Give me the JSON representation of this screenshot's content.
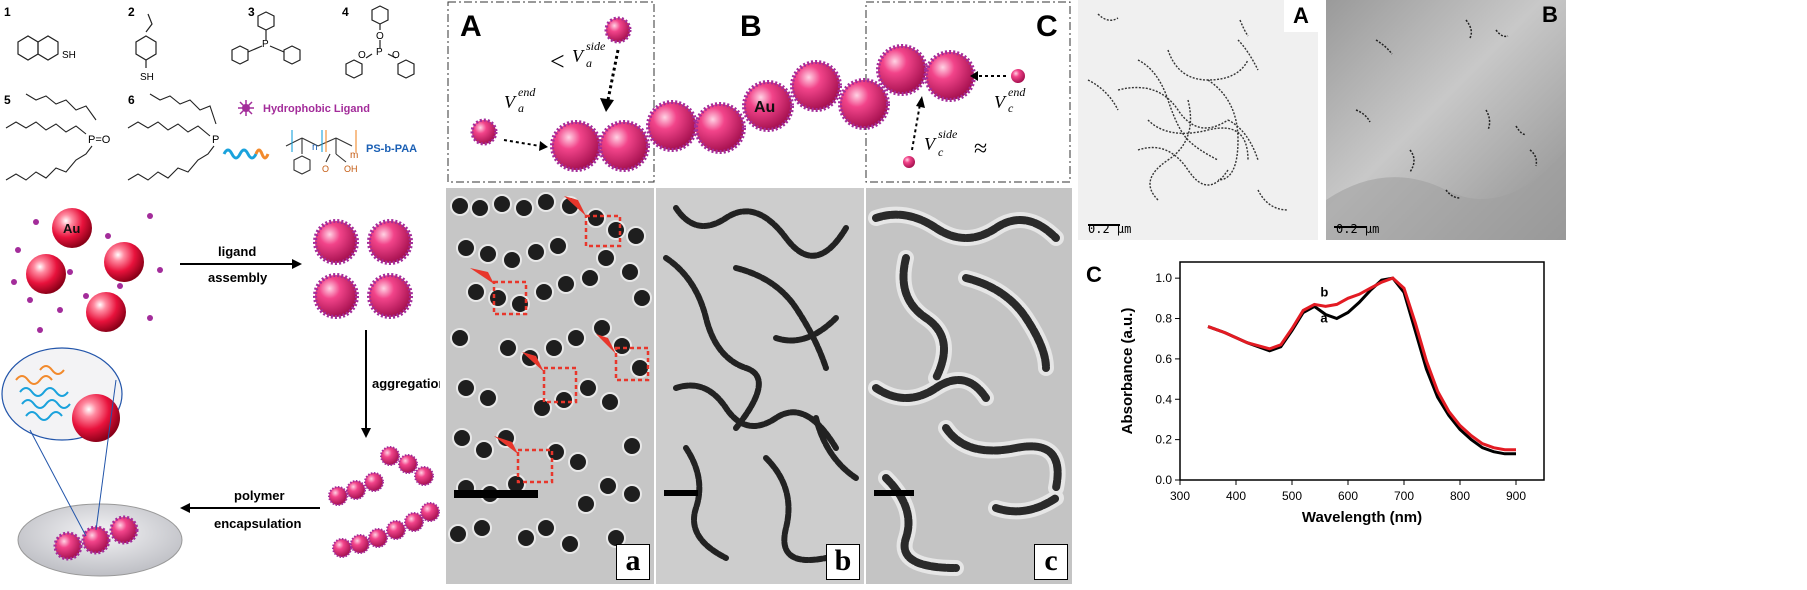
{
  "left_panel": {
    "ligand_numbers": [
      "1",
      "2",
      "3",
      "4",
      "5",
      "6"
    ],
    "groups": {
      "thiol": "SH",
      "phosphine_oxide": "P=O",
      "phosphine": "P",
      "phosphite_o": "O",
      "phosphite_p": "P"
    },
    "legend_hydrophobic": "Hydrophobic Ligand",
    "legend_polymer": "PS-b-PAA",
    "polymer_n": "n",
    "polymer_m": "m",
    "polymer_oh": "OH",
    "polymer_o": "O",
    "au_label": "Au",
    "step1_top": "ligand",
    "step1_bottom": "assembly",
    "step2": "aggregation",
    "step3_top": "polymer",
    "step3_bottom": "encapsulation"
  },
  "middle_panel": {
    "boxes": [
      "A",
      "B",
      "C"
    ],
    "au_label": "Au",
    "v_a_end": "V",
    "sub_a": "a",
    "sup_end": "end",
    "sup_side": "side",
    "sub_c": "c",
    "less_than": "<",
    "approx": "≈",
    "tem_labels": [
      "a",
      "b",
      "c"
    ]
  },
  "right_panel": {
    "labels": [
      "A",
      "B",
      "C"
    ],
    "scale_bar": "0.2 μm",
    "chart_data": {
      "type": "line",
      "xlabel": "Wavelength (nm)",
      "ylabel": "Absorbance (a.u.)",
      "xlim": [
        300,
        950
      ],
      "ylim": [
        0.0,
        1.08
      ],
      "xticks": [
        "300",
        "400",
        "500",
        "600",
        "700",
        "800",
        "900"
      ],
      "yticks": [
        "0.0",
        "0.2",
        "0.4",
        "0.6",
        "0.8",
        "1.0"
      ],
      "series": [
        {
          "name": "a",
          "color": "#000000",
          "x": [
            350,
            380,
            420,
            460,
            480,
            500,
            520,
            540,
            560,
            580,
            600,
            620,
            640,
            660,
            680,
            700,
            720,
            740,
            760,
            780,
            800,
            820,
            840,
            860,
            880,
            900
          ],
          "y": [
            0.76,
            0.73,
            0.68,
            0.64,
            0.66,
            0.74,
            0.83,
            0.86,
            0.82,
            0.8,
            0.83,
            0.88,
            0.94,
            0.99,
            1.0,
            0.93,
            0.74,
            0.55,
            0.41,
            0.32,
            0.25,
            0.2,
            0.16,
            0.14,
            0.13,
            0.13
          ]
        },
        {
          "name": "b",
          "color": "#e31b23",
          "x": [
            350,
            380,
            420,
            460,
            480,
            500,
            520,
            540,
            560,
            580,
            600,
            620,
            640,
            660,
            680,
            700,
            720,
            740,
            760,
            780,
            800,
            820,
            840,
            860,
            880,
            900
          ],
          "y": [
            0.76,
            0.73,
            0.68,
            0.65,
            0.67,
            0.75,
            0.84,
            0.87,
            0.86,
            0.87,
            0.9,
            0.92,
            0.95,
            0.98,
            1.0,
            0.95,
            0.78,
            0.59,
            0.44,
            0.34,
            0.27,
            0.22,
            0.18,
            0.16,
            0.15,
            0.15
          ]
        }
      ]
    }
  }
}
